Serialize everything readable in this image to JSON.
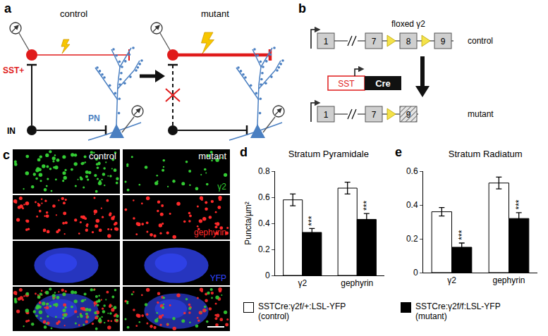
{
  "panels": {
    "a": {
      "label": "a",
      "conditions": [
        "control",
        "mutant"
      ],
      "cells": {
        "sst": "SST+",
        "interneuron": "IN",
        "pyramidal": "PN"
      }
    },
    "b": {
      "label": "b",
      "control": {
        "exons": [
          "1",
          "7",
          "8",
          "9"
        ],
        "floxed": "floxed γ2",
        "label": "control"
      },
      "driver": {
        "promoter": "SST",
        "gene": "Cre"
      },
      "mutant": {
        "exons": [
          "1",
          "7",
          "9"
        ],
        "label": "mutant"
      }
    },
    "c": {
      "label": "c",
      "conditions": [
        "control",
        "mutant"
      ],
      "channels": [
        {
          "name": "γ2",
          "color": "#33cc33"
        },
        {
          "name": "gephyrin",
          "color": "#ff2a2a"
        },
        {
          "name": "YFP",
          "color": "#3347ff"
        }
      ]
    },
    "d": {
      "label": "d"
    },
    "e": {
      "label": "e"
    }
  },
  "chart_data": [
    {
      "type": "bar",
      "title": "Stratum Pyramidale",
      "ylabel": "Puncta/µm²",
      "categories": [
        "γ2",
        "gephyrin"
      ],
      "series": [
        {
          "name": "SSTCre:γ2f/+:LSL-YFP (control)",
          "color": "#ffffff",
          "values": [
            0.58,
            0.67
          ],
          "errors": [
            0.045,
            0.045
          ]
        },
        {
          "name": "SSTCre:γ2f/f:LSL-YFP (mutant)",
          "color": "#000000",
          "values": [
            0.33,
            0.43
          ],
          "errors": [
            0.03,
            0.045
          ],
          "significance": [
            "***",
            "***"
          ]
        }
      ],
      "ylim": [
        0,
        0.8
      ],
      "yticks": [
        0,
        0.2,
        0.4,
        0.6,
        0.8
      ],
      "grid": false
    },
    {
      "type": "bar",
      "title": "Stratum Radiatum",
      "categories": [
        "γ2",
        "gephyrin"
      ],
      "series": [
        {
          "name": "SSTCre:γ2f/+:LSL-YFP (control)",
          "color": "#ffffff",
          "values": [
            0.36,
            0.53
          ],
          "errors": [
            0.025,
            0.035
          ]
        },
        {
          "name": "SSTCre:γ2f/f:LSL-YFP (mutant)",
          "color": "#000000",
          "values": [
            0.15,
            0.32
          ],
          "errors": [
            0.025,
            0.035
          ],
          "significance": [
            "***",
            "***"
          ]
        }
      ],
      "ylim": [
        0,
        0.6
      ],
      "yticks": [
        0,
        0.2,
        0.4,
        0.6
      ],
      "grid": false
    }
  ]
}
